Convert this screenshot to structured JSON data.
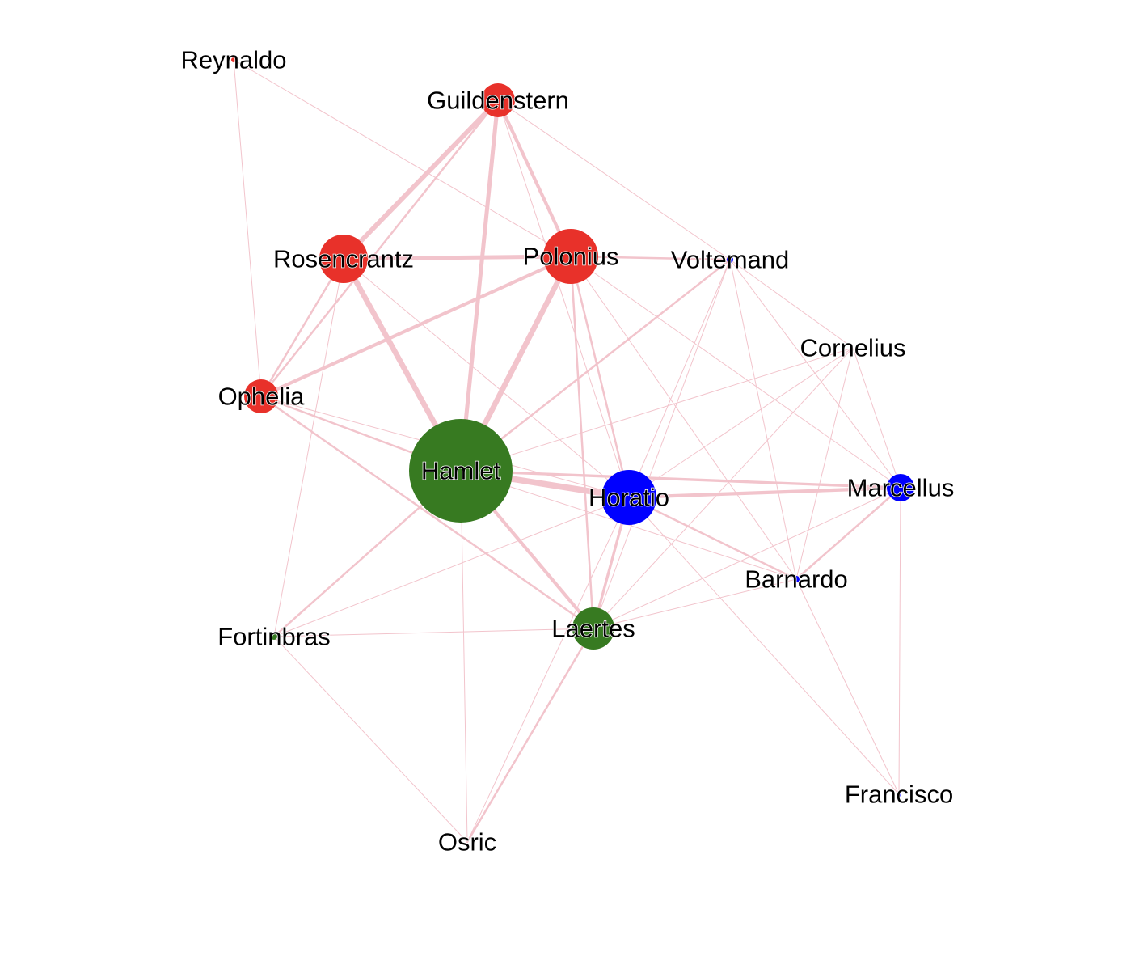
{
  "colors": {
    "edge": "#f2c4cc",
    "red": "#e8312a",
    "green": "#377a21",
    "blue": "#0000ff"
  },
  "nodes": [
    {
      "id": "Hamlet",
      "label": "Hamlet",
      "color": "green"
    },
    {
      "id": "Horatio",
      "label": "Horatio",
      "color": "blue"
    },
    {
      "id": "Polonius",
      "label": "Polonius",
      "color": "red"
    },
    {
      "id": "Rosencrantz",
      "label": "Rosencrantz",
      "color": "red"
    },
    {
      "id": "Guildenstern",
      "label": "Guildenstern",
      "color": "red"
    },
    {
      "id": "Ophelia",
      "label": "Ophelia",
      "color": "red"
    },
    {
      "id": "Laertes",
      "label": "Laertes",
      "color": "green"
    },
    {
      "id": "Marcellus",
      "label": "Marcellus",
      "color": "blue"
    },
    {
      "id": "Reynaldo",
      "label": "Reynaldo",
      "color": "red"
    },
    {
      "id": "Voltemand",
      "label": "Voltemand",
      "color": "blue"
    },
    {
      "id": "Cornelius",
      "label": "Cornelius",
      "color": "blue"
    },
    {
      "id": "Barnardo",
      "label": "Barnardo",
      "color": "blue"
    },
    {
      "id": "Fortinbras",
      "label": "Fortinbras",
      "color": "green"
    },
    {
      "id": "Francisco",
      "label": "Francisco",
      "color": "blue"
    },
    {
      "id": "Osric",
      "label": "Osric",
      "color": "green"
    }
  ],
  "edges": [
    [
      "Hamlet",
      "Horatio",
      8
    ],
    [
      "Hamlet",
      "Rosencrantz",
      7
    ],
    [
      "Hamlet",
      "Polonius",
      7
    ],
    [
      "Hamlet",
      "Guildenstern",
      5
    ],
    [
      "Hamlet",
      "Laertes",
      4
    ],
    [
      "Hamlet",
      "Marcellus",
      3
    ],
    [
      "Hamlet",
      "Ophelia",
      2
    ],
    [
      "Hamlet",
      "Voltemand",
      2
    ],
    [
      "Hamlet",
      "Fortinbras",
      2
    ],
    [
      "Hamlet",
      "Osric",
      1
    ],
    [
      "Hamlet",
      "Barnardo",
      1
    ],
    [
      "Hamlet",
      "Cornelius",
      1
    ],
    [
      "Rosencrantz",
      "Guildenstern",
      6
    ],
    [
      "Rosencrantz",
      "Polonius",
      5
    ],
    [
      "Rosencrantz",
      "Ophelia",
      2
    ],
    [
      "Rosencrantz",
      "Horatio",
      1
    ],
    [
      "Rosencrantz",
      "Fortinbras",
      1
    ],
    [
      "Guildenstern",
      "Polonius",
      4
    ],
    [
      "Guildenstern",
      "Ophelia",
      2
    ],
    [
      "Guildenstern",
      "Voltemand",
      1
    ],
    [
      "Guildenstern",
      "Horatio",
      1
    ],
    [
      "Polonius",
      "Ophelia",
      4
    ],
    [
      "Polonius",
      "Horatio",
      2
    ],
    [
      "Polonius",
      "Laertes",
      2
    ],
    [
      "Polonius",
      "Voltemand",
      2
    ],
    [
      "Polonius",
      "Reynaldo",
      1
    ],
    [
      "Polonius",
      "Marcellus",
      1
    ],
    [
      "Polonius",
      "Barnardo",
      1
    ],
    [
      "Reynaldo",
      "Ophelia",
      1
    ],
    [
      "Ophelia",
      "Laertes",
      2
    ],
    [
      "Ophelia",
      "Horatio",
      1
    ],
    [
      "Horatio",
      "Marcellus",
      4
    ],
    [
      "Horatio",
      "Laertes",
      3
    ],
    [
      "Horatio",
      "Barnardo",
      2
    ],
    [
      "Horatio",
      "Voltemand",
      1
    ],
    [
      "Horatio",
      "Cornelius",
      1
    ],
    [
      "Horatio",
      "Fortinbras",
      1
    ],
    [
      "Horatio",
      "Francisco",
      1
    ],
    [
      "Horatio",
      "Osric",
      1
    ],
    [
      "Marcellus",
      "Barnardo",
      2
    ],
    [
      "Marcellus",
      "Voltemand",
      1
    ],
    [
      "Marcellus",
      "Cornelius",
      1
    ],
    [
      "Marcellus",
      "Francisco",
      1
    ],
    [
      "Marcellus",
      "Laertes",
      1
    ],
    [
      "Barnardo",
      "Francisco",
      1
    ],
    [
      "Barnardo",
      "Voltemand",
      1
    ],
    [
      "Barnardo",
      "Cornelius",
      1
    ],
    [
      "Barnardo",
      "Laertes",
      1
    ],
    [
      "Voltemand",
      "Cornelius",
      1
    ],
    [
      "Voltemand",
      "Laertes",
      1
    ],
    [
      "Cornelius",
      "Laertes",
      1
    ],
    [
      "Laertes",
      "Fortinbras",
      1
    ],
    [
      "Laertes",
      "Osric",
      2
    ],
    [
      "Fortinbras",
      "Osric",
      1
    ]
  ]
}
